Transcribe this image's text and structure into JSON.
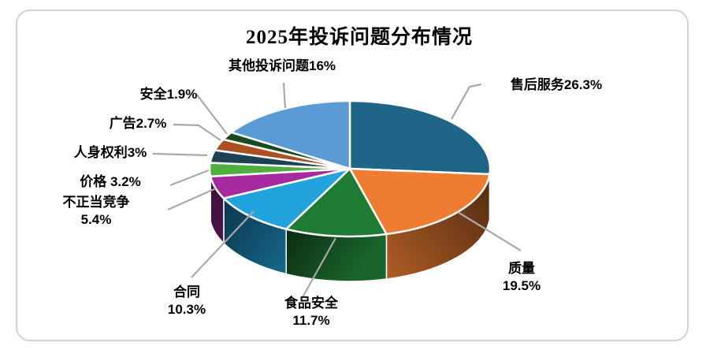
{
  "title": "2025年投诉问题分布情况",
  "chart_data": {
    "type": "pie",
    "style": "3d",
    "title": "2025年投诉问题分布情况",
    "unit": "%",
    "start_angle_deg": 0,
    "direction": "clockwise",
    "legend": "none",
    "leader_line_color": "#a9a9a9",
    "series": [
      {
        "name": "售后服务",
        "value": 26.3,
        "color": "#1F6587",
        "label": "售后服务26.3%"
      },
      {
        "name": "质量",
        "value": 19.5,
        "color": "#EE7D31",
        "label": "质量\n19.5%"
      },
      {
        "name": "食品安全",
        "value": 11.7,
        "color": "#1F7B34",
        "label": "食品安全\n11.7%"
      },
      {
        "name": "合同",
        "value": 10.3,
        "color": "#22A3DE",
        "label": "合同\n10.3%"
      },
      {
        "name": "不正当竞争",
        "value": 5.4,
        "color": "#A62AA0",
        "label": "不正当竞争\n5.4%"
      },
      {
        "name": "价格",
        "value": 3.2,
        "color": "#50AE3E",
        "label": "价格 3.2%"
      },
      {
        "name": "人身权利",
        "value": 3.0,
        "color": "#1C4254",
        "label": "人身权利3%"
      },
      {
        "name": "广告",
        "value": 2.7,
        "color": "#AC5020",
        "label": "广告2.7%"
      },
      {
        "name": "安全",
        "value": 1.9,
        "color": "#1B4A20",
        "label": "安全1.9%"
      },
      {
        "name": "其他投诉问题",
        "value": 16.0,
        "color": "#5B9BD5",
        "label": "其他投诉问题16%"
      }
    ]
  }
}
